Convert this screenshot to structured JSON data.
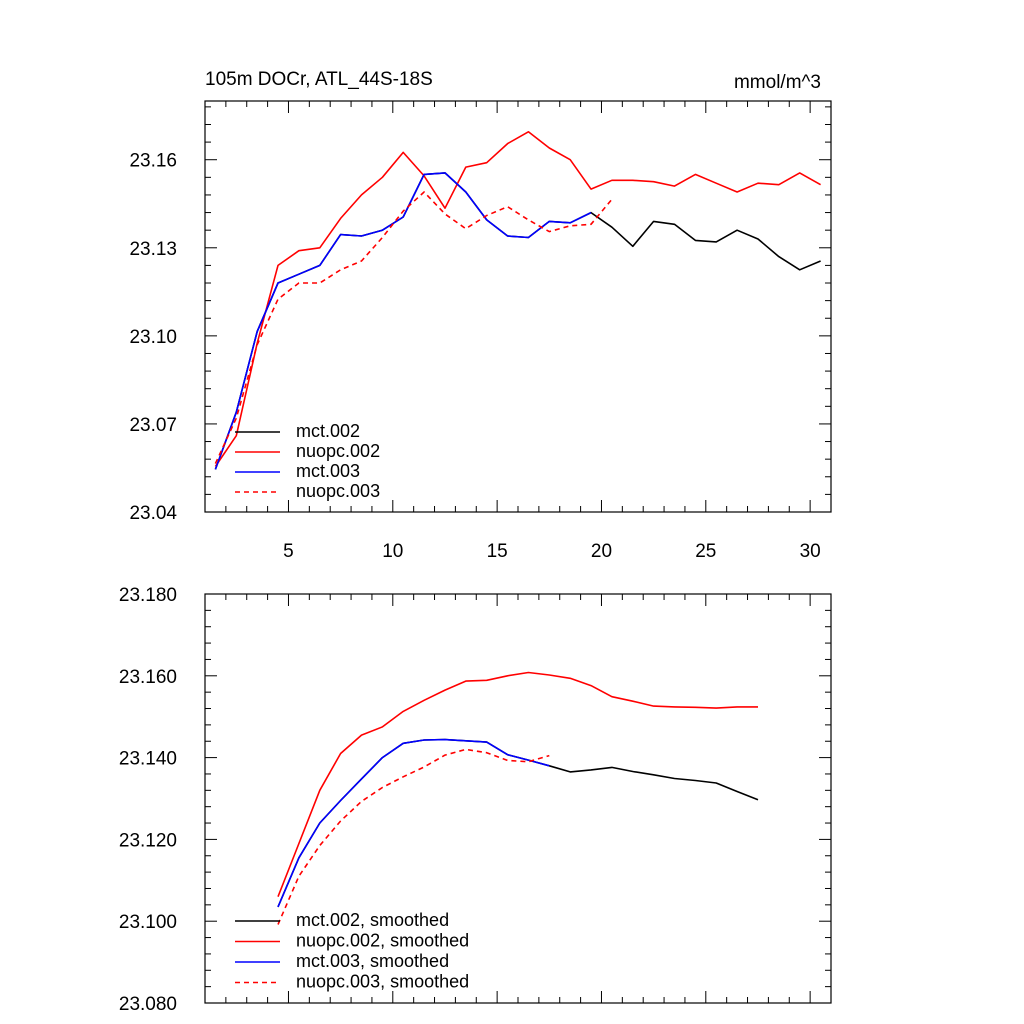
{
  "chart_data": [
    {
      "type": "line",
      "title": "105m DOCr, ATL_44S-18S",
      "units": "mmol/m^3",
      "xlim": [
        1,
        31
      ],
      "ylim": [
        23.04,
        23.18
      ],
      "xticks": [
        5,
        10,
        15,
        20,
        25,
        30
      ],
      "xtick_labels": [
        "5",
        "10",
        "15",
        "20",
        "25",
        "30"
      ],
      "yticks": [
        23.04,
        23.07,
        23.1,
        23.13,
        23.16
      ],
      "ytick_labels": [
        "23.04",
        "23.07",
        "23.10",
        "23.13",
        "23.16"
      ],
      "legend_position": "bottom-left",
      "series": [
        {
          "name": "mct.002",
          "color": "#000000",
          "dash": "solid",
          "x": [
            1.5,
            2.5,
            3.5,
            4.5,
            5.5,
            6.5,
            7.5,
            8.5,
            9.5,
            10.5,
            11.5,
            12.5,
            13.5,
            14.5,
            15.5,
            16.5,
            17.5,
            18.5,
            19.5,
            20.5,
            21.5,
            22.5,
            23.5,
            24.5,
            25.5,
            26.5,
            27.5,
            28.5,
            29.5,
            30.5
          ],
          "values": [
            23.0545,
            23.074,
            23.1015,
            23.118,
            23.121,
            23.124,
            23.1345,
            23.134,
            23.136,
            23.1405,
            23.155,
            23.1555,
            23.149,
            23.1395,
            23.134,
            23.1335,
            23.139,
            23.1385,
            23.142,
            23.137,
            23.1305,
            23.139,
            23.138,
            23.1325,
            23.132,
            23.136,
            23.133,
            23.127,
            23.1225,
            23.1255
          ]
        },
        {
          "name": "nuopc.002",
          "color": "#ff0000",
          "dash": "solid",
          "x": [
            1.5,
            2.5,
            3.5,
            4.5,
            5.5,
            6.5,
            7.5,
            8.5,
            9.5,
            10.5,
            11.5,
            12.5,
            13.5,
            14.5,
            15.5,
            16.5,
            17.5,
            18.5,
            19.5,
            20.5,
            21.5,
            22.5,
            23.5,
            24.5,
            25.5,
            26.5,
            27.5,
            28.5,
            29.5,
            30.5
          ],
          "values": [
            23.0555,
            23.066,
            23.0975,
            23.124,
            23.129,
            23.13,
            23.14,
            23.148,
            23.154,
            23.1625,
            23.1545,
            23.1435,
            23.1575,
            23.159,
            23.1655,
            23.1695,
            23.164,
            23.16,
            23.15,
            23.153,
            23.153,
            23.1525,
            23.151,
            23.155,
            23.152,
            23.149,
            23.152,
            23.1515,
            23.1555,
            23.1515
          ]
        },
        {
          "name": "mct.003",
          "color": "#0000ff",
          "dash": "solid",
          "x": [
            1.5,
            2.5,
            3.5,
            4.5,
            5.5,
            6.5,
            7.5,
            8.5,
            9.5,
            10.5,
            11.5,
            12.5,
            13.5,
            14.5,
            15.5,
            16.5,
            17.5,
            18.5,
            19.5
          ],
          "values": [
            23.0545,
            23.074,
            23.1015,
            23.118,
            23.121,
            23.124,
            23.1345,
            23.134,
            23.136,
            23.1405,
            23.155,
            23.1555,
            23.149,
            23.1395,
            23.134,
            23.1335,
            23.139,
            23.1385,
            23.142
          ]
        },
        {
          "name": "nuopc.003",
          "color": "#ff0000",
          "dash": "dashed",
          "x": [
            1.5,
            2.5,
            3.5,
            4.5,
            5.5,
            6.5,
            7.5,
            8.5,
            9.5,
            10.5,
            11.5,
            12.5,
            13.5,
            14.5,
            15.5,
            16.5,
            17.5,
            18.5,
            19.5,
            20.5
          ],
          "values": [
            23.0565,
            23.072,
            23.097,
            23.1125,
            23.118,
            23.118,
            23.1225,
            23.1255,
            23.1335,
            23.1425,
            23.149,
            23.1415,
            23.1365,
            23.141,
            23.144,
            23.1395,
            23.1355,
            23.1375,
            23.138,
            23.1465
          ]
        }
      ]
    },
    {
      "type": "line",
      "title": "",
      "xlim": [
        1,
        31
      ],
      "ylim": [
        23.08,
        23.18
      ],
      "xticks": [
        5,
        10,
        15,
        20,
        25,
        30
      ],
      "yticks": [
        23.08,
        23.1,
        23.12,
        23.14,
        23.16,
        23.18
      ],
      "ytick_labels": [
        "23.080",
        "23.100",
        "23.120",
        "23.140",
        "23.160",
        "23.180"
      ],
      "legend_position": "bottom-left",
      "series": [
        {
          "name": "mct.002, smoothed",
          "color": "#000000",
          "dash": "solid",
          "x": [
            4.5,
            5.5,
            6.5,
            7.5,
            8.5,
            9.5,
            10.5,
            11.5,
            12.5,
            13.5,
            14.5,
            15.5,
            16.5,
            17.5,
            18.5,
            19.5,
            20.5,
            21.5,
            22.5,
            23.5,
            24.5,
            25.5,
            26.5,
            27.5
          ],
          "values": [
            23.1035,
            23.1155,
            23.124,
            23.1295,
            23.1348,
            23.14,
            23.1435,
            23.1443,
            23.1444,
            23.1441,
            23.1438,
            23.1407,
            23.1394,
            23.138,
            23.1365,
            23.137,
            23.1376,
            23.1366,
            23.1358,
            23.1349,
            23.1344,
            23.1338,
            23.1317,
            23.1297
          ]
        },
        {
          "name": "nuopc.002, smoothed",
          "color": "#ff0000",
          "dash": "solid",
          "x": [
            4.5,
            5.5,
            6.5,
            7.5,
            8.5,
            9.5,
            10.5,
            11.5,
            12.5,
            13.5,
            14.5,
            15.5,
            16.5,
            17.5,
            18.5,
            19.5,
            20.5,
            21.5,
            22.5,
            23.5,
            24.5,
            25.5,
            26.5,
            27.5
          ],
          "values": [
            23.106,
            23.119,
            23.132,
            23.141,
            23.1455,
            23.1475,
            23.1513,
            23.154,
            23.1565,
            23.1587,
            23.1589,
            23.16,
            23.1608,
            23.1602,
            23.1594,
            23.1576,
            23.1549,
            23.1538,
            23.1526,
            23.1524,
            23.1523,
            23.1521,
            23.1524,
            23.1524
          ]
        },
        {
          "name": "mct.003, smoothed",
          "color": "#0000ff",
          "dash": "solid",
          "x": [
            4.5,
            5.5,
            6.5,
            7.5,
            8.5,
            9.5,
            10.5,
            11.5,
            12.5,
            13.5,
            14.5,
            15.5,
            16.5,
            17.5
          ],
          "values": [
            23.1035,
            23.1155,
            23.124,
            23.1295,
            23.1348,
            23.14,
            23.1435,
            23.1443,
            23.1444,
            23.1441,
            23.1438,
            23.1407,
            23.1394,
            23.138
          ]
        },
        {
          "name": "nuopc.003, smoothed",
          "color": "#ff0000",
          "dash": "dashed",
          "x": [
            4.5,
            5.5,
            6.5,
            7.5,
            8.5,
            9.5,
            10.5,
            11.5,
            12.5,
            13.5,
            14.5,
            15.5,
            16.5,
            17.5
          ],
          "values": [
            23.0992,
            23.111,
            23.1185,
            23.1245,
            23.1293,
            23.1327,
            23.1353,
            23.1377,
            23.1406,
            23.142,
            23.1412,
            23.1393,
            23.139,
            23.1405
          ]
        }
      ]
    }
  ]
}
